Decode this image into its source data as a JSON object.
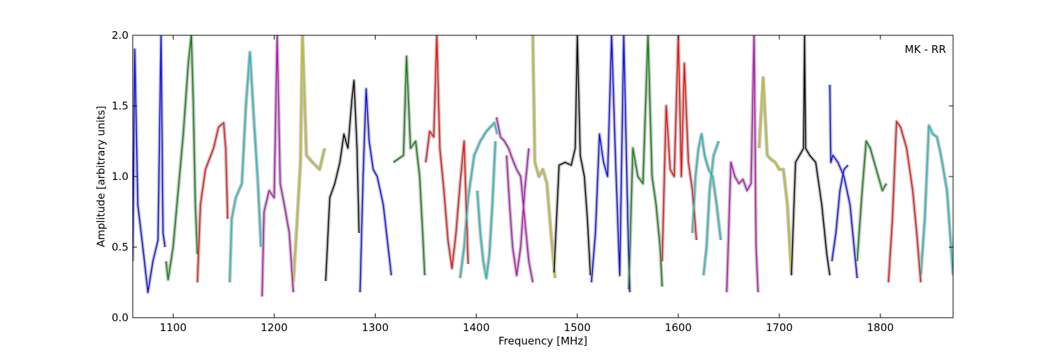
{
  "chart_data": {
    "type": "line",
    "title": "",
    "annotation": "MK - RR",
    "xlabel": "Frequency [MHz]",
    "ylabel": "Amplitude [arbitrary units]",
    "xlim": [
      1060,
      1872
    ],
    "ylim": [
      0.0,
      2.0
    ],
    "xticks": [
      1100,
      1200,
      1300,
      1400,
      1500,
      1600,
      1700,
      1800
    ],
    "yticks": [
      0.0,
      0.5,
      1.0,
      1.5,
      2.0
    ],
    "ytick_labels": [
      "0.0",
      "0.5",
      "1.0",
      "1.5",
      "2.0"
    ],
    "grid": false,
    "background_color": "#c0c0c0",
    "band_colors": [
      "#0000ff",
      "#008000",
      "#ff0000",
      "#00bfbf",
      "#bf00bf",
      "#bfbf00",
      "#000000"
    ],
    "bands": [
      {
        "color": "#0000ff",
        "x": [
          1060,
          1062,
          1065,
          1070,
          1075,
          1080,
          1085,
          1088,
          1090,
          1092
        ],
        "y": [
          0.4,
          1.9,
          0.8,
          0.5,
          0.18,
          0.4,
          0.55,
          2.0,
          0.6,
          0.5
        ]
      },
      {
        "color": "#008000",
        "x": [
          1093,
          1095,
          1100,
          1105,
          1110,
          1115,
          1118,
          1120,
          1122,
          1124
        ],
        "y": [
          0.4,
          0.27,
          0.5,
          0.9,
          1.3,
          1.8,
          2.0,
          1.5,
          0.8,
          0.45
        ]
      },
      {
        "color": "#ff0000",
        "x": [
          1124,
          1127,
          1132,
          1140,
          1145,
          1150,
          1152,
          1154
        ],
        "y": [
          0.25,
          0.8,
          1.05,
          1.2,
          1.35,
          1.38,
          1.2,
          0.7
        ]
      },
      {
        "color": "#00bfbf",
        "x": [
          1156,
          1158,
          1162,
          1168,
          1172,
          1176,
          1180,
          1184,
          1187
        ],
        "y": [
          0.25,
          0.7,
          0.85,
          0.95,
          1.5,
          1.88,
          1.4,
          0.95,
          0.5
        ]
      },
      {
        "color": "#bf00bf",
        "x": [
          1188,
          1190,
          1195,
          1200,
          1203,
          1206,
          1210,
          1215,
          1219
        ],
        "y": [
          0.15,
          0.75,
          0.9,
          0.85,
          2.0,
          0.95,
          0.8,
          0.6,
          0.18
        ]
      },
      {
        "color": "#bfbf00",
        "x": [
          1219,
          1222,
          1226,
          1228,
          1232,
          1238,
          1245,
          1250
        ],
        "y": [
          0.25,
          0.6,
          1.1,
          2.0,
          1.15,
          1.1,
          1.05,
          1.2
        ]
      },
      {
        "color": "#000000",
        "x": [
          1251,
          1255,
          1260,
          1265,
          1269,
          1273,
          1277,
          1279,
          1282,
          1284
        ],
        "y": [
          0.26,
          0.85,
          0.95,
          1.1,
          1.3,
          1.2,
          1.55,
          1.68,
          1.2,
          0.6
        ]
      },
      {
        "color": "#0000ff",
        "x": [
          1285,
          1288,
          1291,
          1294,
          1298,
          1302,
          1308,
          1312,
          1316
        ],
        "y": [
          0.18,
          1.0,
          1.62,
          1.25,
          1.05,
          1.0,
          0.8,
          0.55,
          0.3
        ]
      },
      {
        "color": "#008000",
        "x": [
          1318,
          1322,
          1328,
          1331,
          1335,
          1340,
          1344,
          1347,
          1349
        ],
        "y": [
          1.1,
          1.12,
          1.15,
          1.85,
          1.2,
          1.25,
          1.0,
          0.6,
          0.3
        ]
      },
      {
        "color": "#ff0000",
        "x": [
          1350,
          1354,
          1358,
          1361,
          1364,
          1368,
          1372,
          1376,
          1380,
          1384,
          1388,
          1392
        ],
        "y": [
          1.1,
          1.32,
          1.28,
          2.0,
          1.2,
          0.9,
          0.55,
          0.35,
          0.6,
          0.95,
          1.25,
          0.38
        ]
      },
      {
        "color": "#00bfbf",
        "x": [
          1384,
          1388,
          1392,
          1398,
          1404,
          1410,
          1414,
          1418,
          1421
        ],
        "y": [
          0.28,
          0.5,
          0.85,
          1.15,
          1.25,
          1.32,
          1.35,
          1.38,
          1.3
        ]
      },
      {
        "color": "#00bfbf",
        "x": [
          1401,
          1404,
          1407,
          1410,
          1413,
          1416,
          1419
        ],
        "y": [
          0.9,
          0.6,
          0.4,
          0.28,
          0.45,
          0.8,
          1.25
        ]
      },
      {
        "color": "#bf00bf",
        "x": [
          1420,
          1424,
          1428,
          1432,
          1436,
          1440,
          1444,
          1448,
          1452,
          1456
        ],
        "y": [
          1.42,
          1.28,
          1.25,
          1.2,
          1.12,
          1.05,
          1.0,
          0.7,
          0.4,
          0.25
        ]
      },
      {
        "color": "#bf00bf",
        "x": [
          1430,
          1433,
          1436,
          1440,
          1444,
          1448,
          1452
        ],
        "y": [
          1.15,
          0.8,
          0.5,
          0.3,
          0.5,
          0.9,
          1.2
        ]
      },
      {
        "color": "#bfbf00",
        "x": [
          1456,
          1458,
          1462,
          1466,
          1470,
          1474,
          1478
        ],
        "y": [
          2.0,
          1.1,
          1.0,
          1.05,
          0.95,
          0.6,
          0.28
        ]
      },
      {
        "color": "#000000",
        "x": [
          1477,
          1482,
          1488,
          1494,
          1498,
          1500,
          1503,
          1507,
          1510,
          1513
        ],
        "y": [
          0.32,
          1.08,
          1.1,
          1.08,
          1.2,
          2.0,
          1.15,
          1.0,
          0.7,
          0.3
        ]
      },
      {
        "color": "#0000ff",
        "x": [
          1514,
          1518,
          1522,
          1526,
          1530,
          1534,
          1538,
          1542,
          1546,
          1550,
          1552
        ],
        "y": [
          0.25,
          0.6,
          1.3,
          1.1,
          1.0,
          2.0,
          1.1,
          0.3,
          2.0,
          0.7,
          0.18
        ]
      },
      {
        "color": "#008000",
        "x": [
          1551,
          1555,
          1560,
          1565,
          1570,
          1574,
          1578,
          1582,
          1584
        ],
        "y": [
          0.2,
          1.2,
          1.0,
          0.95,
          2.0,
          1.0,
          0.8,
          0.5,
          0.22
        ]
      },
      {
        "color": "#ff0000",
        "x": [
          1584,
          1588,
          1592,
          1596,
          1600,
          1603,
          1606,
          1610,
          1614,
          1618
        ],
        "y": [
          0.4,
          1.5,
          1.05,
          1.0,
          2.0,
          1.0,
          1.8,
          1.1,
          0.9,
          0.55
        ]
      },
      {
        "color": "#00bfbf",
        "x": [
          1614,
          1617,
          1620,
          1623,
          1626,
          1630,
          1634,
          1638,
          1642
        ],
        "y": [
          0.6,
          1.0,
          1.2,
          1.3,
          1.15,
          1.05,
          1.0,
          0.8,
          0.55
        ]
      },
      {
        "color": "#00bfbf",
        "x": [
          1625,
          1628,
          1631,
          1635,
          1640
        ],
        "y": [
          0.3,
          0.5,
          0.9,
          1.15,
          1.25
        ]
      },
      {
        "color": "#bf00bf",
        "x": [
          1648,
          1652,
          1656,
          1660,
          1664,
          1668,
          1672,
          1675,
          1677,
          1679
        ],
        "y": [
          0.18,
          1.1,
          1.0,
          0.95,
          0.98,
          0.9,
          0.95,
          2.0,
          0.5,
          0.18
        ]
      },
      {
        "color": "#bfbf00",
        "x": [
          1680,
          1684,
          1688,
          1692,
          1696,
          1700,
          1704,
          1708,
          1712
        ],
        "y": [
          1.2,
          1.7,
          1.15,
          1.12,
          1.1,
          1.05,
          1.05,
          0.8,
          0.3
        ]
      },
      {
        "color": "#000000",
        "x": [
          1712,
          1716,
          1720,
          1724,
          1725,
          1726,
          1730,
          1736,
          1742,
          1747,
          1750
        ],
        "y": [
          0.3,
          1.1,
          1.15,
          1.2,
          2.0,
          1.2,
          1.15,
          1.1,
          0.8,
          0.45,
          0.3
        ]
      },
      {
        "color": "#0000ff",
        "x": [
          1750,
          1751,
          1753,
          1758,
          1764,
          1770,
          1774,
          1777
        ],
        "y": [
          1.65,
          1.1,
          1.15,
          1.1,
          1.0,
          0.8,
          0.5,
          0.28
        ]
      },
      {
        "color": "#0000ff",
        "x": [
          1752,
          1756,
          1760,
          1764,
          1768
        ],
        "y": [
          0.4,
          0.6,
          0.9,
          1.05,
          1.08
        ]
      },
      {
        "color": "#008000",
        "x": [
          1777,
          1782,
          1786,
          1790,
          1794,
          1798,
          1802,
          1806
        ],
        "y": [
          0.4,
          0.9,
          1.25,
          1.2,
          1.1,
          1.0,
          0.9,
          0.95
        ]
      },
      {
        "color": "#ff0000",
        "x": [
          1808,
          1812,
          1816,
          1820,
          1826,
          1832,
          1836,
          1840
        ],
        "y": [
          0.25,
          0.7,
          1.39,
          1.35,
          1.2,
          0.9,
          0.6,
          0.25
        ]
      },
      {
        "color": "#00bfbf",
        "x": [
          1840,
          1844,
          1848,
          1852,
          1856,
          1860,
          1866,
          1872
        ],
        "y": [
          0.3,
          0.7,
          1.36,
          1.3,
          1.28,
          1.15,
          0.9,
          0.3
        ]
      }
    ]
  }
}
